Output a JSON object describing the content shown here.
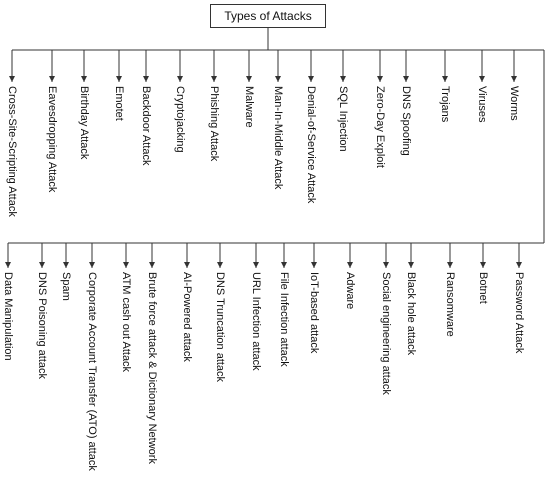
{
  "root": "Types of Attacks",
  "row1": [
    "Cross-Site-Scripting Attack",
    "Eavesdropping Attack",
    "Birthday Attack",
    "Emotet",
    "Backdoor Attack",
    "Cryptojacking",
    "Phishing Attack",
    "Malware",
    "Man-In-Middle Attack",
    "Denial-of-Service Attack",
    "SQL Injection",
    "Zero-Day Exploit",
    "DNS Spoofing",
    "Trojans",
    "Viruses",
    "Worms"
  ],
  "row2": [
    "Data Manipulation",
    "DNS Poisoning attack",
    "Spam",
    "Corporate Account Transfer (ATO) attack",
    "ATM cash out Attack",
    "Brute force attack & Dictionary Network",
    "AI-Powered attack",
    "DNS Truncation attack",
    "URL Infection attack",
    "File Infection attack",
    "IoT-based attack",
    "Adware",
    "Social engineering attack",
    "Black hole attack",
    "Ransomware",
    "Botnet",
    "Password Attack"
  ],
  "colors": {
    "line": "#333333",
    "text": "#111111"
  }
}
